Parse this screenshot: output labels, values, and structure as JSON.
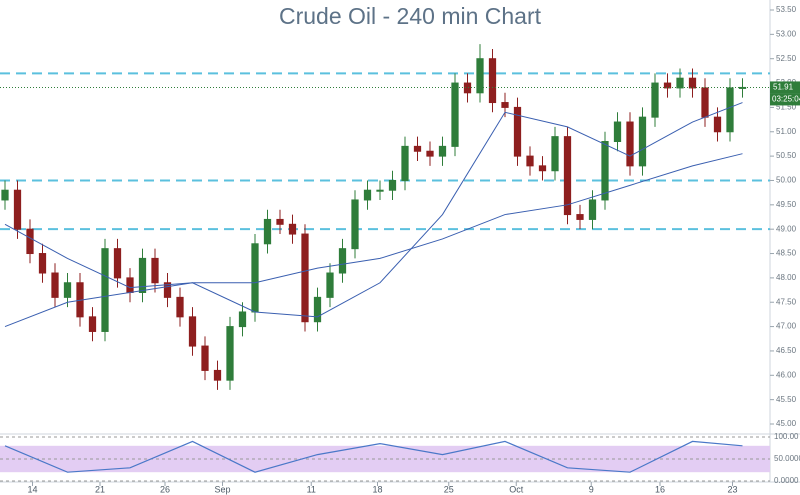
{
  "chart_data": {
    "type": "candlestick",
    "title": "Crude Oil - 240 min Chart",
    "x": [
      0,
      1,
      2,
      3,
      4,
      5,
      6,
      7,
      8,
      9,
      10,
      11,
      12,
      13,
      14,
      15,
      16,
      17,
      18,
      19,
      20,
      21,
      22,
      23,
      24,
      25,
      26,
      27,
      28,
      29,
      30,
      31,
      32,
      33,
      34,
      35,
      36,
      37,
      38,
      39,
      40,
      41,
      42,
      43,
      44,
      45,
      46,
      47,
      48,
      49,
      50,
      51,
      52,
      53,
      54,
      55,
      56,
      57,
      58,
      59
    ],
    "open": [
      49.6,
      49.8,
      49.0,
      48.5,
      48.1,
      47.6,
      47.9,
      47.2,
      46.9,
      48.6,
      48.0,
      47.7,
      48.4,
      47.9,
      47.6,
      47.2,
      46.6,
      46.1,
      45.9,
      47.0,
      47.3,
      48.7,
      49.2,
      49.1,
      48.9,
      47.1,
      47.6,
      48.1,
      48.6,
      49.6,
      49.8,
      49.8,
      50.0,
      50.7,
      50.6,
      50.5,
      50.7,
      52.0,
      51.8,
      52.5,
      51.6,
      51.5,
      50.5,
      50.3,
      50.2,
      50.9,
      49.3,
      49.2,
      49.6,
      50.8,
      51.2,
      50.3,
      51.3,
      52.0,
      51.9,
      52.1,
      51.9,
      51.3,
      51.0,
      51.9
    ],
    "high": [
      50.0,
      50.0,
      49.2,
      48.7,
      48.3,
      48.1,
      48.1,
      47.4,
      48.8,
      48.8,
      48.2,
      48.6,
      48.6,
      48.1,
      47.8,
      47.4,
      46.8,
      46.3,
      47.2,
      47.5,
      48.9,
      49.4,
      49.4,
      49.3,
      49.1,
      47.8,
      48.3,
      48.8,
      49.8,
      50.0,
      50.0,
      50.2,
      50.9,
      50.9,
      50.8,
      50.9,
      52.2,
      52.2,
      52.8,
      52.7,
      51.8,
      51.7,
      50.7,
      50.5,
      51.1,
      51.1,
      49.5,
      49.8,
      51.0,
      51.4,
      51.4,
      51.5,
      52.2,
      52.2,
      52.3,
      52.3,
      52.1,
      51.5,
      52.1,
      52.1
    ],
    "low": [
      49.4,
      48.8,
      48.3,
      47.9,
      47.4,
      47.4,
      47.0,
      46.7,
      46.7,
      47.8,
      47.5,
      47.5,
      47.7,
      47.4,
      47.0,
      46.4,
      45.9,
      45.7,
      45.7,
      46.8,
      47.1,
      48.5,
      48.9,
      48.7,
      46.9,
      46.9,
      47.4,
      47.9,
      48.4,
      49.4,
      49.6,
      49.6,
      49.8,
      50.4,
      50.3,
      50.3,
      50.5,
      51.6,
      51.6,
      51.4,
      51.3,
      50.3,
      50.1,
      50.0,
      50.0,
      49.1,
      49.0,
      49.0,
      49.4,
      50.6,
      50.1,
      50.1,
      51.1,
      51.7,
      51.7,
      51.7,
      51.1,
      50.8,
      50.8,
      51.7
    ],
    "close": [
      49.8,
      49.0,
      48.5,
      48.1,
      47.6,
      47.9,
      47.2,
      46.9,
      48.6,
      48.0,
      47.7,
      48.4,
      47.9,
      47.6,
      47.2,
      46.6,
      46.1,
      45.9,
      47.0,
      47.3,
      48.7,
      49.2,
      49.1,
      48.9,
      47.1,
      47.6,
      48.1,
      48.6,
      49.6,
      49.8,
      49.8,
      50.0,
      50.7,
      50.6,
      50.5,
      50.7,
      52.0,
      51.8,
      52.5,
      51.6,
      51.5,
      50.5,
      50.3,
      50.2,
      50.9,
      49.3,
      49.2,
      49.6,
      50.8,
      51.2,
      50.3,
      51.3,
      52.0,
      51.9,
      52.1,
      51.9,
      51.3,
      51.0,
      51.9,
      51.91
    ],
    "up_color": "#2f7d3a",
    "down_color": "#8e1f1f",
    "averages": {
      "x": [
        0,
        5,
        10,
        15,
        20,
        25,
        30,
        35,
        40,
        45,
        50,
        55,
        59
      ],
      "series": [
        {
          "color": "#3a5fb0",
          "values": [
            49.1,
            48.4,
            47.8,
            47.9,
            47.3,
            47.2,
            47.9,
            49.3,
            51.4,
            51.1,
            50.5,
            51.2,
            51.6
          ]
        },
        {
          "color": "#3a5fb0",
          "values": [
            47.0,
            47.5,
            47.7,
            47.9,
            47.9,
            48.2,
            48.4,
            48.8,
            49.3,
            49.5,
            49.9,
            50.3,
            50.55
          ]
        }
      ]
    },
    "levels": [
      52.2,
      50.0,
      49.0
    ],
    "level_color": "#5bc0de",
    "last_price": 51.91,
    "countdown": "03:25:04",
    "ylim": [
      45.0,
      53.5
    ],
    "yticks": [
      {
        "value": 45.0,
        "label": "45.00"
      },
      {
        "value": 45.5,
        "label": "45.50"
      },
      {
        "value": 46.0,
        "label": "46.00"
      },
      {
        "value": 46.5,
        "label": "46.50"
      },
      {
        "value": 47.0,
        "label": "47.00"
      },
      {
        "value": 47.5,
        "label": "47.50"
      },
      {
        "value": 48.0,
        "label": "48.00"
      },
      {
        "value": 48.5,
        "label": "48.50"
      },
      {
        "value": 49.0,
        "label": "49.00"
      },
      {
        "value": 49.5,
        "label": "49.50"
      },
      {
        "value": 50.0,
        "label": "50.00"
      },
      {
        "value": 50.5,
        "label": "50.50"
      },
      {
        "value": 51.0,
        "label": "51.00"
      },
      {
        "value": 51.5,
        "label": "51.50"
      },
      {
        "value": 52.0,
        "label": "52.00"
      },
      {
        "value": 52.5,
        "label": "52.50"
      },
      {
        "value": 53.0,
        "label": "53.00"
      },
      {
        "value": 53.5,
        "label": "53.50"
      }
    ],
    "xlim": [
      -0.4,
      61.2
    ],
    "xticks": [
      {
        "value": 2.2,
        "label": "14"
      },
      {
        "value": 7.6,
        "label": "21"
      },
      {
        "value": 12.8,
        "label": "26"
      },
      {
        "value": 17.4,
        "label": "Sep"
      },
      {
        "value": 24.5,
        "label": "11"
      },
      {
        "value": 29.8,
        "label": "18"
      },
      {
        "value": 35.5,
        "label": "25"
      },
      {
        "value": 40.9,
        "label": "Oct"
      },
      {
        "value": 46.9,
        "label": "9"
      },
      {
        "value": 52.4,
        "label": "16"
      },
      {
        "value": 58.2,
        "label": "23"
      }
    ],
    "stochastic": {
      "x": [
        0,
        5,
        10,
        15,
        20,
        25,
        30,
        35,
        40,
        45,
        50,
        55,
        59
      ],
      "color": "#4a78c8",
      "values": [
        80,
        20,
        30,
        90,
        20,
        60,
        85,
        60,
        90,
        30,
        20,
        90,
        80
      ],
      "ylim": [
        0,
        100
      ],
      "band": [
        20,
        80
      ],
      "band_color": "#e3cdf3",
      "yticks": [
        {
          "value": 100,
          "label": "100.00"
        },
        {
          "value": 50,
          "label": "50.0000"
        },
        {
          "value": 0,
          "label": "0.0000"
        }
      ]
    }
  }
}
